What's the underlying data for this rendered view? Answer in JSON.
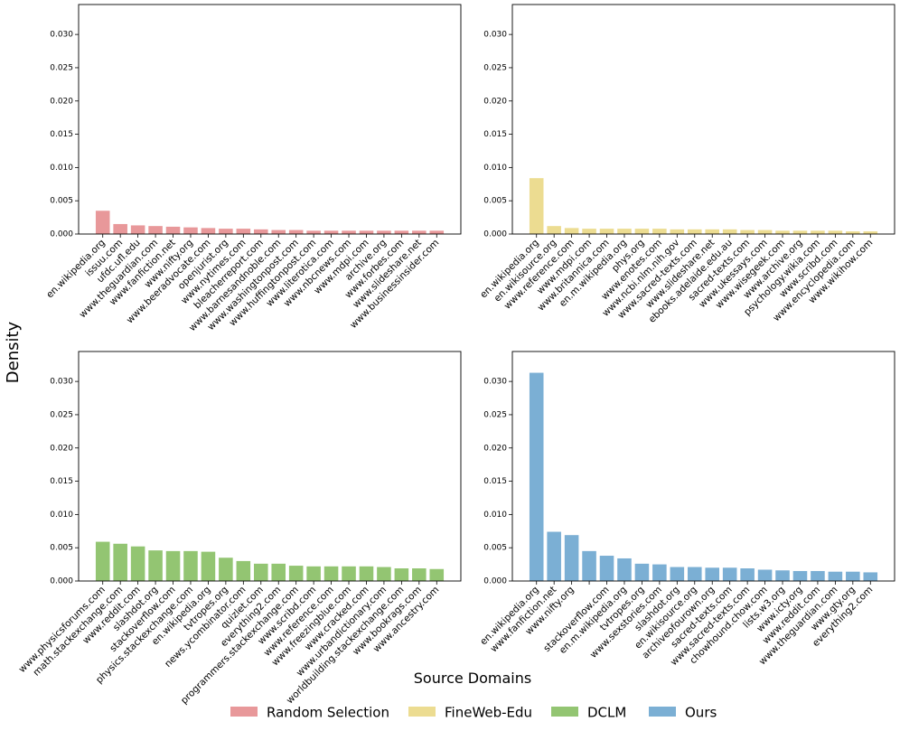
{
  "ylabel": "Density",
  "xlabel": "Source Domains",
  "chart_data": [
    {
      "type": "bar",
      "categories": [
        "en.wikipedia.org",
        "issuu.com",
        "ufdc.ufl.edu",
        "www.theguardian.com",
        "www.fanfiction.net",
        "www.nifty.org",
        "www.beeradvocate.com",
        "openjurist.org",
        "www.nytimes.com",
        "bleacherreport.com",
        "www.barnesandnoble.com",
        "www.washingtonpost.com",
        "www.huffingtonpost.com",
        "www.literotica.com",
        "www.nbcnews.com",
        "www.mdpi.com",
        "archive.org",
        "www.forbes.com",
        "www.slideshare.net",
        "www.businessinsider.com"
      ],
      "series": [
        {
          "name": "Random Selection",
          "color": "#e8989a",
          "values": [
            0.0035,
            0.0015,
            0.0013,
            0.0012,
            0.0011,
            0.001,
            0.0009,
            0.0008,
            0.0008,
            0.0007,
            0.0006,
            0.0006,
            0.0005,
            0.0005,
            0.0005,
            0.0005,
            0.0005,
            0.0005,
            0.0005,
            0.0005
          ]
        }
      ],
      "ylim": [
        0,
        0.0345
      ],
      "yticks": [
        {
          "value": 0,
          "label": "0.000"
        },
        {
          "value": 0.005,
          "label": "0.005"
        },
        {
          "value": 0.01,
          "label": "0.010"
        },
        {
          "value": 0.015,
          "label": "0.015"
        },
        {
          "value": 0.02,
          "label": "0.020"
        },
        {
          "value": 0.025,
          "label": "0.025"
        },
        {
          "value": 0.03,
          "label": "0.030"
        }
      ]
    },
    {
      "type": "bar",
      "categories": [
        "en.wikipedia.org",
        "en.wikisource.org",
        "www.reference.com",
        "www.mdpi.com",
        "www.britannica.com",
        "en.m.wikipedia.org",
        "phys.org",
        "www.enotes.com",
        "www.ncbi.nlm.nih.gov",
        "www.sacred-texts.com",
        "www.slideshare.net",
        "ebooks.adelaide.edu.au",
        "sacred-texts.com",
        "www.ukessays.com",
        "www.wisegeek.com",
        "www.archive.org",
        "psychology.wikia.com",
        "www.scribd.com",
        "www.encyclopedia.com",
        "www.wikihow.com"
      ],
      "series": [
        {
          "name": "FineWeb-Edu",
          "color": "#ecdc91",
          "values": [
            0.0084,
            0.0012,
            0.0009,
            0.0008,
            0.0008,
            0.0008,
            0.0008,
            0.0008,
            0.0007,
            0.0007,
            0.0007,
            0.0007,
            0.0006,
            0.0006,
            0.0005,
            0.0005,
            0.0005,
            0.0005,
            0.0004,
            0.0004
          ]
        }
      ],
      "ylim": [
        0,
        0.0345
      ],
      "yticks": [
        {
          "value": 0,
          "label": "0.000"
        },
        {
          "value": 0.005,
          "label": "0.005"
        },
        {
          "value": 0.01,
          "label": "0.010"
        },
        {
          "value": 0.015,
          "label": "0.015"
        },
        {
          "value": 0.02,
          "label": "0.020"
        },
        {
          "value": 0.025,
          "label": "0.025"
        },
        {
          "value": 0.03,
          "label": "0.030"
        }
      ]
    },
    {
      "type": "bar",
      "categories": [
        "www.physicsforums.com",
        "math.stackexchange.com",
        "www.reddit.com",
        "slashdot.org",
        "stackoverflow.com",
        "physics.stackexchange.com",
        "en.wikipedia.org",
        "tvtropes.org",
        "news.ycombinator.com",
        "quizlet.com",
        "everything2.com",
        "programmers.stackexchange.com",
        "www.scribd.com",
        "www.reference.com",
        "www.freezingblue.com",
        "www.cracked.com",
        "www.urbandictionary.com",
        "worldbuilding.stackexchange.com",
        "www.bookrags.com",
        "www.ancestry.com"
      ],
      "series": [
        {
          "name": "DCLM",
          "color": "#93c572",
          "values": [
            0.0059,
            0.0056,
            0.0052,
            0.0046,
            0.0045,
            0.0045,
            0.0044,
            0.0035,
            0.003,
            0.0026,
            0.0026,
            0.0023,
            0.0022,
            0.0022,
            0.0022,
            0.0022,
            0.0021,
            0.0019,
            0.0019,
            0.0018
          ]
        }
      ],
      "ylim": [
        0,
        0.0345
      ],
      "yticks": [
        {
          "value": 0,
          "label": "0.000"
        },
        {
          "value": 0.005,
          "label": "0.005"
        },
        {
          "value": 0.01,
          "label": "0.010"
        },
        {
          "value": 0.015,
          "label": "0.015"
        },
        {
          "value": 0.02,
          "label": "0.020"
        },
        {
          "value": 0.025,
          "label": "0.025"
        },
        {
          "value": 0.03,
          "label": "0.030"
        }
      ]
    },
    {
      "type": "bar",
      "categories": [
        "en.wikipedia.org",
        "www.fanfiction.net",
        "www.nifty.org",
        null,
        "stackoverflow.com",
        "en.m.wikipedia.org",
        "tvtropes.org",
        "www.sexstories.com",
        "slashdot.org",
        "en.wikisource.org",
        "archiveofourown.org",
        "sacred-texts.com",
        "www.sacred-texts.com",
        "chowhound.chow.com",
        "lists.w3.org",
        "www.icty.org",
        "www.reddit.com",
        "www.theguardian.com",
        "www.gty.org",
        "everything2.com"
      ],
      "series": [
        {
          "name": "Ours",
          "color": "#7bafd4",
          "values": [
            0.0313,
            0.0074,
            0.0069,
            0.0045,
            0.0038,
            0.0034,
            0.0026,
            0.0025,
            0.0021,
            0.0021,
            0.002,
            0.002,
            0.0019,
            0.0017,
            0.0016,
            0.0015,
            0.0015,
            0.0014,
            0.0014,
            0.0013
          ]
        }
      ],
      "ylim": [
        0,
        0.0345
      ],
      "yticks": [
        {
          "value": 0,
          "label": "0.000"
        },
        {
          "value": 0.005,
          "label": "0.005"
        },
        {
          "value": 0.01,
          "label": "0.010"
        },
        {
          "value": 0.015,
          "label": "0.015"
        },
        {
          "value": 0.02,
          "label": "0.020"
        },
        {
          "value": 0.025,
          "label": "0.025"
        },
        {
          "value": 0.03,
          "label": "0.030"
        }
      ]
    }
  ]
}
